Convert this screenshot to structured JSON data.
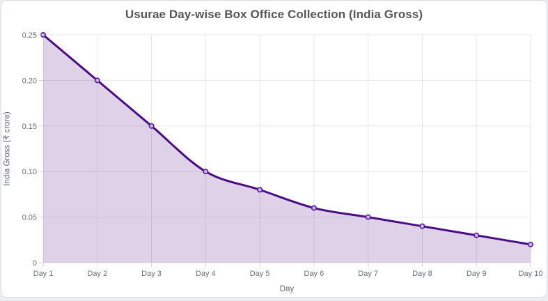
{
  "chart_data": {
    "type": "area",
    "title": "Usurae Day-wise Box Office Collection (India Gross)",
    "xlabel": "Day",
    "ylabel": "India Gross (₹ crore)",
    "categories": [
      "Day 1",
      "Day 2",
      "Day 3",
      "Day 4",
      "Day 5",
      "Day 6",
      "Day 7",
      "Day 8",
      "Day 9",
      "Day 10"
    ],
    "values": [
      0.25,
      0.2,
      0.15,
      0.1,
      0.08,
      0.06,
      0.05,
      0.04,
      0.03,
      0.02
    ],
    "ylim": [
      0,
      0.25
    ],
    "y_ticks": [
      0,
      0.05,
      0.1,
      0.15,
      0.2,
      0.25
    ],
    "y_tick_labels": [
      "0",
      "0.05",
      "0.10",
      "0.15",
      "0.20",
      "0.25"
    ],
    "grid": true,
    "legend": false,
    "line_style": "smooth-monotone",
    "colors": {
      "line": "#4a0d87",
      "area_fill": "rgba(75,0,130,0.18)",
      "marker_stroke": "#5a1d9e",
      "marker_fill": "#c9b2e6",
      "gridline": "#e5e7e9",
      "tick_mark": "#d4d6d8",
      "title_text": "#565656",
      "axis_title_text": "#63686d",
      "tick_label_text": "#6a6f74",
      "card_background": "#ffffff",
      "page_background": "#eceef0",
      "card_border": "#d9dcdf"
    }
  }
}
